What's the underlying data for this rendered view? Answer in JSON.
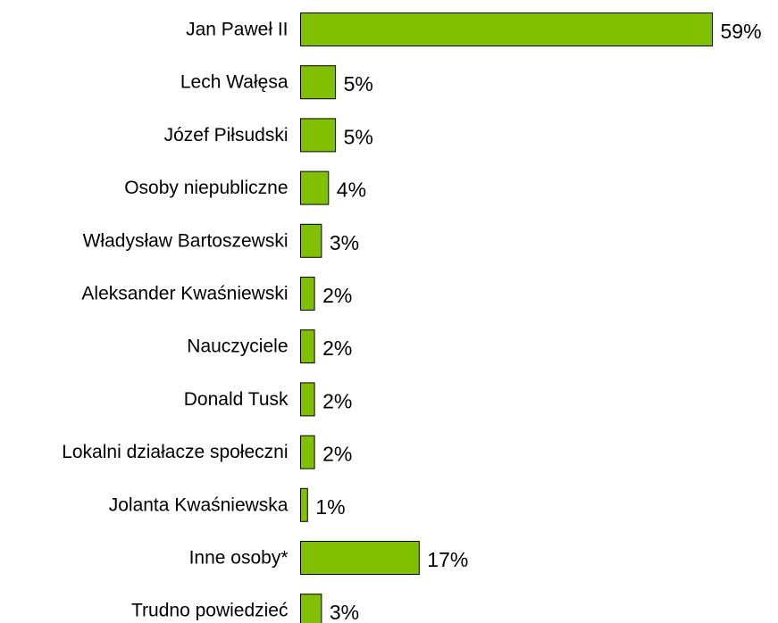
{
  "chart_data": {
    "type": "bar",
    "orientation": "horizontal",
    "title": "",
    "xlabel": "",
    "ylabel": "",
    "categories": [
      "Jan Paweł II",
      "Lech Wałęsa",
      "Józef Piłsudski",
      "Osoby niepubliczne",
      "Władysław Bartoszewski",
      "Aleksander Kwaśniewski",
      "Nauczyciele",
      "Donald Tusk",
      "Lokalni działacze społeczni",
      "Jolanta Kwaśniewska",
      "Inne osoby*",
      "Trudno powiedzieć"
    ],
    "values": [
      59,
      5,
      5,
      4,
      3,
      2,
      2,
      2,
      2,
      1,
      17,
      3
    ],
    "value_labels": [
      "59%",
      "5%",
      "5%",
      "4%",
      "3%",
      "2%",
      "2%",
      "2%",
      "2%",
      "1%",
      "17%",
      "3%"
    ],
    "xlim": [
      0,
      59
    ],
    "grid": false,
    "legend": "none",
    "bar_color": "#80c000",
    "bar_edge_color": "#000000"
  }
}
